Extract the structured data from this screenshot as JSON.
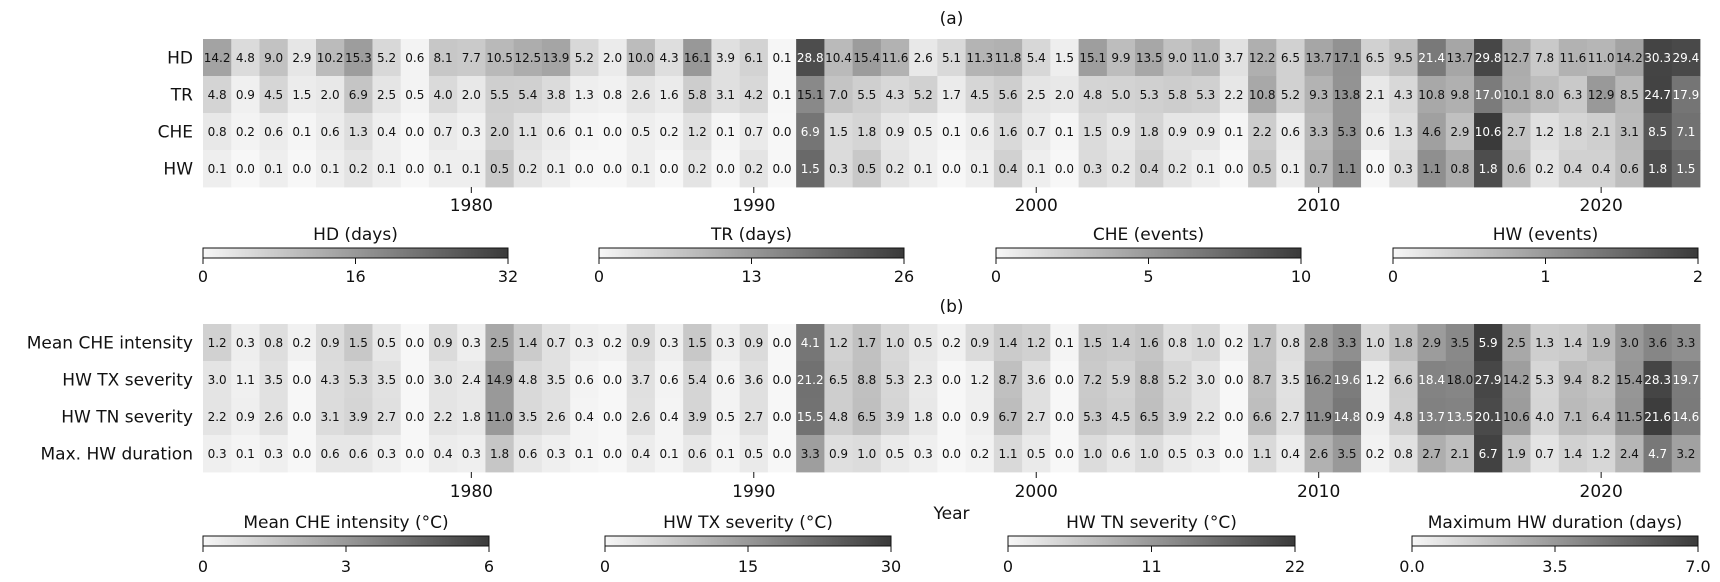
{
  "chart_data": [
    {
      "type": "heatmap",
      "panel_label": "(a)",
      "x_start": 1971,
      "x_ticks": [
        1980,
        1990,
        2000,
        2010,
        2020
      ],
      "rows": [
        {
          "name": "HD",
          "scale": "HD",
          "values": [
            14.2,
            4.8,
            9.0,
            2.9,
            10.2,
            15.3,
            5.2,
            0.6,
            8.1,
            7.7,
            10.5,
            12.5,
            13.9,
            5.2,
            2.0,
            10.0,
            4.3,
            16.1,
            3.9,
            6.1,
            0.1,
            28.8,
            10.4,
            15.4,
            11.6,
            2.6,
            5.1,
            11.3,
            11.8,
            5.4,
            1.5,
            15.1,
            9.9,
            13.5,
            9.0,
            11.0,
            3.7,
            12.2,
            6.5,
            13.7,
            17.1,
            6.5,
            9.5,
            21.4,
            13.7,
            29.8,
            12.7,
            7.8,
            11.6,
            11.0,
            14.2,
            30.3,
            29.4
          ]
        },
        {
          "name": "TR",
          "scale": "TR",
          "values": [
            4.8,
            0.9,
            4.5,
            1.5,
            2.0,
            6.9,
            2.5,
            0.5,
            4.0,
            2.0,
            5.5,
            5.4,
            3.8,
            1.3,
            0.8,
            2.6,
            1.6,
            5.8,
            3.1,
            4.2,
            0.1,
            15.1,
            7.0,
            5.5,
            4.3,
            5.2,
            1.7,
            4.5,
            5.6,
            2.5,
            2.0,
            4.8,
            5.0,
            5.3,
            5.8,
            5.3,
            2.2,
            10.8,
            5.2,
            9.3,
            13.8,
            2.1,
            4.3,
            10.8,
            9.8,
            17.0,
            10.1,
            8.0,
            6.3,
            12.9,
            8.5,
            24.7,
            17.9
          ]
        },
        {
          "name": "CHE",
          "scale": "CHE",
          "values": [
            0.8,
            0.2,
            0.6,
            0.1,
            0.6,
            1.3,
            0.4,
            0.0,
            0.7,
            0.3,
            2.0,
            1.1,
            0.6,
            0.1,
            0.0,
            0.5,
            0.2,
            1.2,
            0.1,
            0.7,
            0.0,
            6.9,
            1.5,
            1.8,
            0.9,
            0.5,
            0.1,
            0.6,
            1.6,
            0.7,
            0.1,
            1.5,
            0.9,
            1.8,
            0.9,
            0.9,
            0.1,
            2.2,
            0.6,
            3.3,
            5.3,
            0.6,
            1.3,
            4.6,
            2.9,
            10.6,
            2.7,
            1.2,
            1.8,
            2.1,
            3.1,
            8.5,
            7.1
          ]
        },
        {
          "name": "HW",
          "scale": "HW",
          "values": [
            0.1,
            0.0,
            0.1,
            0.0,
            0.1,
            0.2,
            0.1,
            0.0,
            0.1,
            0.1,
            0.5,
            0.2,
            0.1,
            0.0,
            0.0,
            0.1,
            0.0,
            0.2,
            0.0,
            0.2,
            0.0,
            1.5,
            0.3,
            0.5,
            0.2,
            0.1,
            0.0,
            0.1,
            0.4,
            0.1,
            0.0,
            0.3,
            0.2,
            0.4,
            0.2,
            0.1,
            0.0,
            0.5,
            0.1,
            0.7,
            1.1,
            0.0,
            0.3,
            1.1,
            0.8,
            1.8,
            0.6,
            0.2,
            0.4,
            0.4,
            0.6,
            1.8,
            1.5
          ]
        }
      ],
      "colorbars": [
        {
          "key": "HD",
          "label": "HD (days)",
          "min": 0,
          "max": 32,
          "ticks": [
            "0",
            "16",
            "32"
          ]
        },
        {
          "key": "TR",
          "label": "TR (days)",
          "min": 0,
          "max": 26,
          "ticks": [
            "0",
            "13",
            "26"
          ]
        },
        {
          "key": "CHE",
          "label": "CHE (events)",
          "min": 0,
          "max": 10,
          "ticks": [
            "0",
            "5",
            "10"
          ]
        },
        {
          "key": "HW",
          "label": "HW (events)",
          "min": 0,
          "max": 2,
          "ticks": [
            "0",
            "1",
            "2"
          ]
        }
      ]
    },
    {
      "type": "heatmap",
      "panel_label": "(b)",
      "x_start": 1971,
      "x_ticks": [
        1980,
        1990,
        2000,
        2010,
        2020
      ],
      "xlabel": "Year",
      "rows": [
        {
          "name": "Mean CHE intensity",
          "scale": "CHEI",
          "values": [
            1.2,
            0.3,
            0.8,
            0.2,
            0.9,
            1.5,
            0.5,
            0.0,
            0.9,
            0.3,
            2.5,
            1.4,
            0.7,
            0.3,
            0.2,
            0.9,
            0.3,
            1.5,
            0.3,
            0.9,
            0.0,
            4.1,
            1.2,
            1.7,
            1.0,
            0.5,
            0.2,
            0.9,
            1.4,
            1.2,
            0.1,
            1.5,
            1.4,
            1.6,
            0.8,
            1.0,
            0.2,
            1.7,
            0.8,
            2.8,
            3.3,
            1.0,
            1.8,
            2.9,
            3.5,
            5.9,
            2.5,
            1.3,
            1.4,
            1.9,
            3.0,
            3.6,
            3.3
          ]
        },
        {
          "name": "HW TX severity",
          "scale": "TX",
          "values": [
            3.0,
            1.1,
            3.5,
            0.0,
            4.3,
            5.3,
            3.5,
            0.0,
            3.0,
            2.4,
            14.9,
            4.8,
            3.5,
            0.6,
            0.0,
            3.7,
            0.6,
            5.4,
            0.6,
            3.6,
            0.0,
            21.2,
            6.5,
            8.8,
            5.3,
            2.3,
            0.0,
            1.2,
            8.7,
            3.6,
            0.0,
            7.2,
            5.9,
            8.8,
            5.2,
            3.0,
            0.0,
            8.7,
            3.5,
            16.2,
            19.6,
            1.2,
            6.6,
            18.4,
            18.0,
            27.9,
            14.2,
            5.3,
            9.4,
            8.2,
            15.4,
            28.3,
            19.7
          ]
        },
        {
          "name": "HW TN severity",
          "scale": "TN",
          "values": [
            2.2,
            0.9,
            2.6,
            0.0,
            3.1,
            3.9,
            2.7,
            0.0,
            2.2,
            1.8,
            11.0,
            3.5,
            2.6,
            0.4,
            0.0,
            2.6,
            0.4,
            3.9,
            0.5,
            2.7,
            0.0,
            15.5,
            4.8,
            6.5,
            3.9,
            1.8,
            0.0,
            0.9,
            6.7,
            2.7,
            0.0,
            5.3,
            4.5,
            6.5,
            3.9,
            2.2,
            0.0,
            6.6,
            2.7,
            11.9,
            14.8,
            0.9,
            4.8,
            13.7,
            13.5,
            20.1,
            10.6,
            4.0,
            7.1,
            6.4,
            11.5,
            21.6,
            14.6
          ]
        },
        {
          "name": "Max. HW duration",
          "scale": "DUR",
          "values": [
            0.3,
            0.1,
            0.3,
            0.0,
            0.6,
            0.6,
            0.3,
            0.0,
            0.4,
            0.3,
            1.8,
            0.6,
            0.3,
            0.1,
            0.0,
            0.4,
            0.1,
            0.6,
            0.1,
            0.5,
            0.0,
            3.3,
            0.9,
            1.0,
            0.5,
            0.3,
            0.0,
            0.2,
            1.1,
            0.5,
            0.0,
            1.0,
            0.6,
            1.0,
            0.5,
            0.3,
            0.0,
            1.1,
            0.4,
            2.6,
            3.5,
            0.2,
            0.8,
            2.7,
            2.1,
            6.7,
            1.9,
            0.7,
            1.4,
            1.2,
            2.4,
            4.7,
            3.2
          ]
        }
      ],
      "colorbars": [
        {
          "key": "CHEI",
          "label": "Mean CHE intensity (°C)",
          "min": 0,
          "max": 6,
          "ticks": [
            "0",
            "3",
            "6"
          ]
        },
        {
          "key": "TX",
          "label": "HW TX severity (°C)",
          "min": 0,
          "max": 30,
          "ticks": [
            "0",
            "15",
            "30"
          ]
        },
        {
          "key": "TN",
          "label": "HW TN severity (°C)",
          "min": 0,
          "max": 22,
          "ticks": [
            "0",
            "11",
            "22"
          ]
        },
        {
          "key": "DUR",
          "label": "Maximum HW duration (days)",
          "min": 0,
          "max": 7,
          "ticks": [
            "0.0",
            "3.5",
            "7.0"
          ]
        }
      ]
    }
  ],
  "colors": {
    "low": "#f7f7f7",
    "high": "#3a3a3a",
    "axis": "#111111"
  }
}
